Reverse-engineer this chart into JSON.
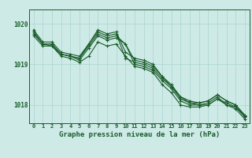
{
  "xlabel": "Graphe pression niveau de la mer (hPa)",
  "background_color": "#ceeae7",
  "grid_color": "#b0d8d4",
  "line_color": "#1a5c2a",
  "x_ticks": [
    0,
    1,
    2,
    3,
    4,
    5,
    6,
    7,
    8,
    9,
    10,
    11,
    12,
    13,
    14,
    15,
    16,
    17,
    18,
    19,
    20,
    21,
    22,
    23
  ],
  "xlim": [
    -0.5,
    23.5
  ],
  "ylim": [
    1017.55,
    1020.35
  ],
  "yticks": [
    1018,
    1019,
    1020
  ],
  "series": [
    [
      1019.85,
      1019.55,
      1019.55,
      1019.3,
      1019.25,
      1019.2,
      1019.5,
      1019.85,
      1019.75,
      1019.8,
      1019.3,
      1019.15,
      1019.1,
      1019.0,
      1018.7,
      1018.45,
      1018.2,
      1018.05,
      1018.05,
      1018.1,
      1018.25,
      1018.1,
      1018.0,
      1017.75
    ],
    [
      1019.8,
      1019.5,
      1019.5,
      1019.25,
      1019.2,
      1019.15,
      1019.45,
      1019.75,
      1019.65,
      1019.7,
      1019.5,
      1019.0,
      1018.95,
      1018.85,
      1018.6,
      1018.4,
      1018.1,
      1018.0,
      1018.0,
      1018.0,
      1018.15,
      1018.05,
      1017.95,
      1017.7
    ],
    [
      1019.8,
      1019.5,
      1019.5,
      1019.25,
      1019.2,
      1019.15,
      1019.5,
      1019.8,
      1019.7,
      1019.75,
      1019.15,
      1019.05,
      1019.0,
      1018.9,
      1018.65,
      1018.45,
      1018.15,
      1018.05,
      1018.0,
      1018.05,
      1018.2,
      1018.0,
      1017.95,
      1017.72
    ],
    [
      1019.75,
      1019.5,
      1019.45,
      1019.25,
      1019.2,
      1019.1,
      1019.4,
      1019.7,
      1019.6,
      1019.65,
      1019.5,
      1019.1,
      1019.05,
      1018.95,
      1018.7,
      1018.5,
      1018.2,
      1018.1,
      1018.05,
      1018.1,
      1018.25,
      1018.1,
      1018.0,
      1017.72
    ],
    [
      1019.7,
      1019.45,
      1019.45,
      1019.2,
      1019.15,
      1019.05,
      1019.2,
      1019.55,
      1019.45,
      1019.5,
      1019.2,
      1018.95,
      1018.9,
      1018.8,
      1018.5,
      1018.3,
      1018.0,
      1017.95,
      1017.95,
      1018.0,
      1018.15,
      1018.0,
      1017.9,
      1017.65
    ]
  ]
}
